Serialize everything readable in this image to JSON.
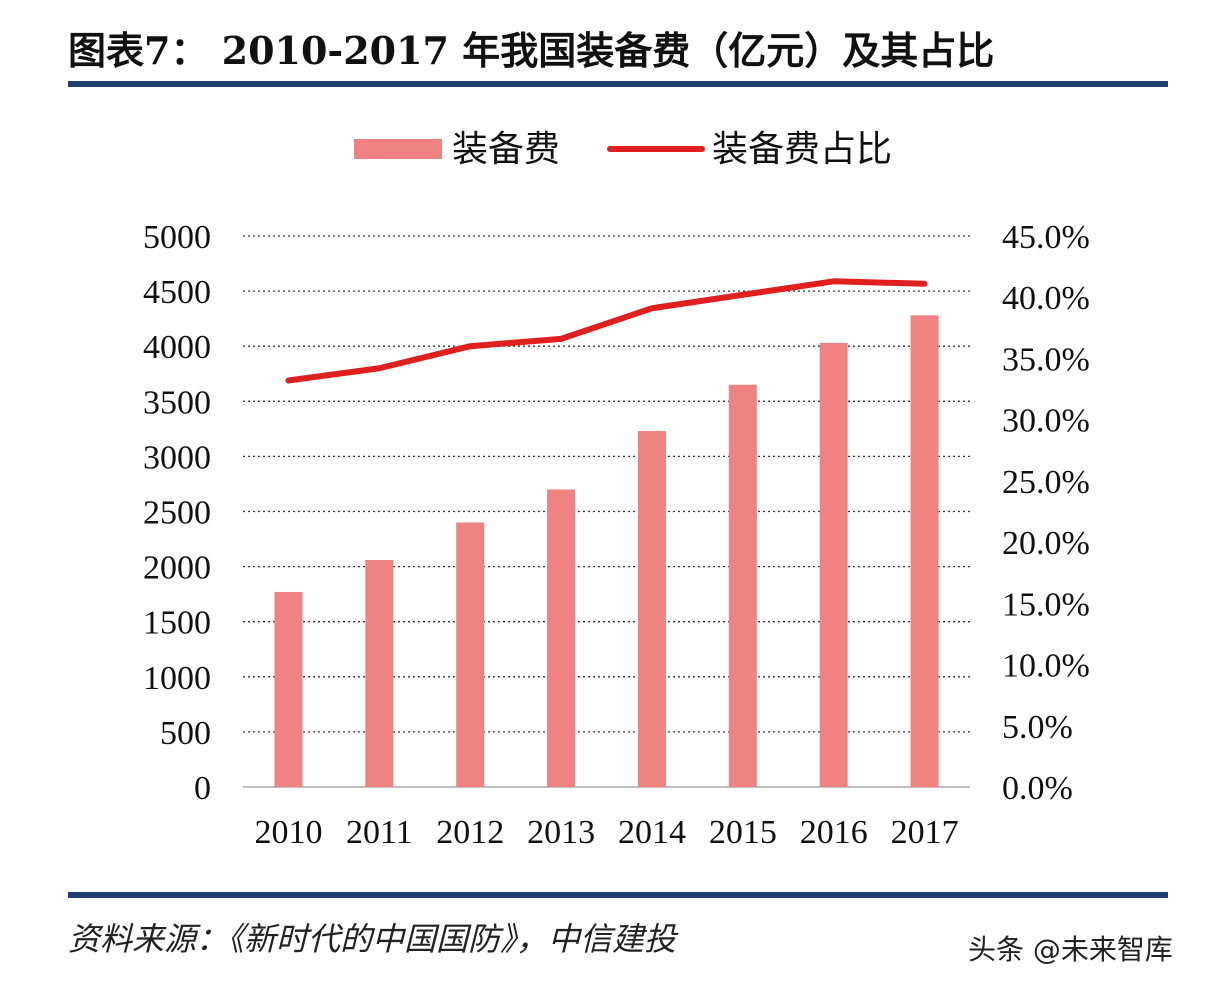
{
  "header": {
    "title": "图表7：  2010-2017 年我国装备费（亿元）及其占比"
  },
  "footer": {
    "source": "资料来源：《新时代的中国国防》，中信建投",
    "watermark": "头条 @未来智库"
  },
  "chart_data": {
    "type": "bar",
    "categories": [
      "2010",
      "2011",
      "2012",
      "2013",
      "2014",
      "2015",
      "2016",
      "2017"
    ],
    "series": [
      {
        "name": "装备费",
        "type": "bar",
        "axis": "left",
        "color": "#f08282",
        "values": [
          1770,
          2060,
          2400,
          2700,
          3230,
          3650,
          4030,
          4280
        ]
      },
      {
        "name": "装备费占比",
        "type": "line",
        "axis": "right",
        "color": "#e01f1f",
        "values": [
          33.2,
          34.2,
          36.0,
          36.6,
          39.1,
          40.2,
          41.3,
          41.1
        ]
      }
    ],
    "y_left": {
      "ylim": [
        0,
        5000
      ],
      "ticks": [
        "0",
        "500",
        "1000",
        "1500",
        "2000",
        "2500",
        "3000",
        "3500",
        "4000",
        "4500",
        "5000"
      ]
    },
    "y_right": {
      "ylim": [
        0,
        45
      ],
      "ticks": [
        "0.0%",
        "5.0%",
        "10.0%",
        "15.0%",
        "20.0%",
        "25.0%",
        "30.0%",
        "35.0%",
        "40.0%",
        "45.0%"
      ]
    },
    "grid": "horizontal-dotted",
    "legend": "top-center"
  }
}
